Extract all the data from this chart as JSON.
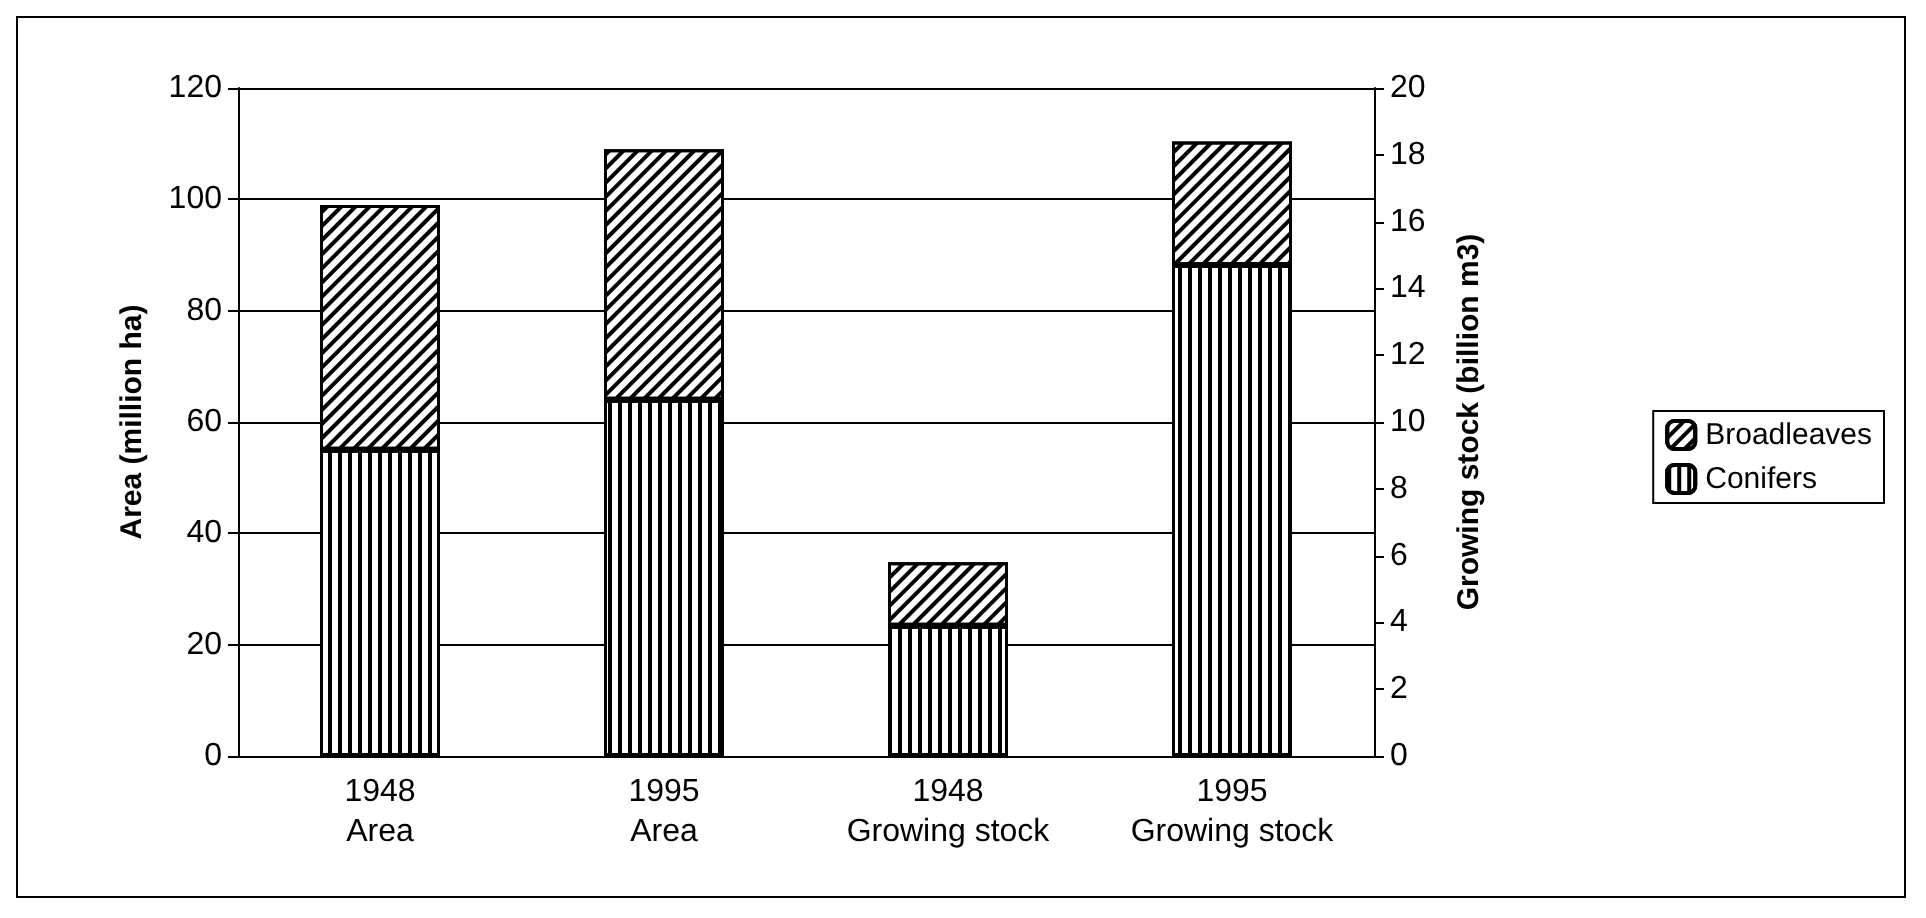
{
  "chart_data": {
    "type": "bar",
    "stacked": true,
    "categories": [
      "1948\nArea",
      "1995\nArea",
      "1948\nGrowing stock",
      "1995\nGrowing stock"
    ],
    "series": [
      {
        "name": "Conifers",
        "color": "#000000",
        "values": [
          55,
          64,
          null,
          null
        ]
      },
      {
        "name": "Broadleaves",
        "color": "#000000",
        "values": [
          44,
          45,
          null,
          null
        ]
      },
      {
        "color": "#000000",
        "axis": "y2",
        "values": [
          null,
          null,
          3.9,
          14.7
        ]
      },
      {
        "color": "#000000",
        "axis": "y2",
        "values": [
          null,
          null,
          1.9,
          3.7
        ]
      }
    ],
    "ylabel": "Area (million ha)",
    "y2label": "Growing stock (billion m3)",
    "ylim": [
      0,
      120
    ],
    "yticks": [
      0,
      20,
      40,
      60,
      80,
      100,
      120
    ],
    "y2lim": [
      0,
      20
    ],
    "y2ticks": [
      0,
      2,
      4,
      6,
      8,
      10,
      12,
      14,
      16,
      18,
      20
    ],
    "grid": "y",
    "legend": "right"
  }
}
